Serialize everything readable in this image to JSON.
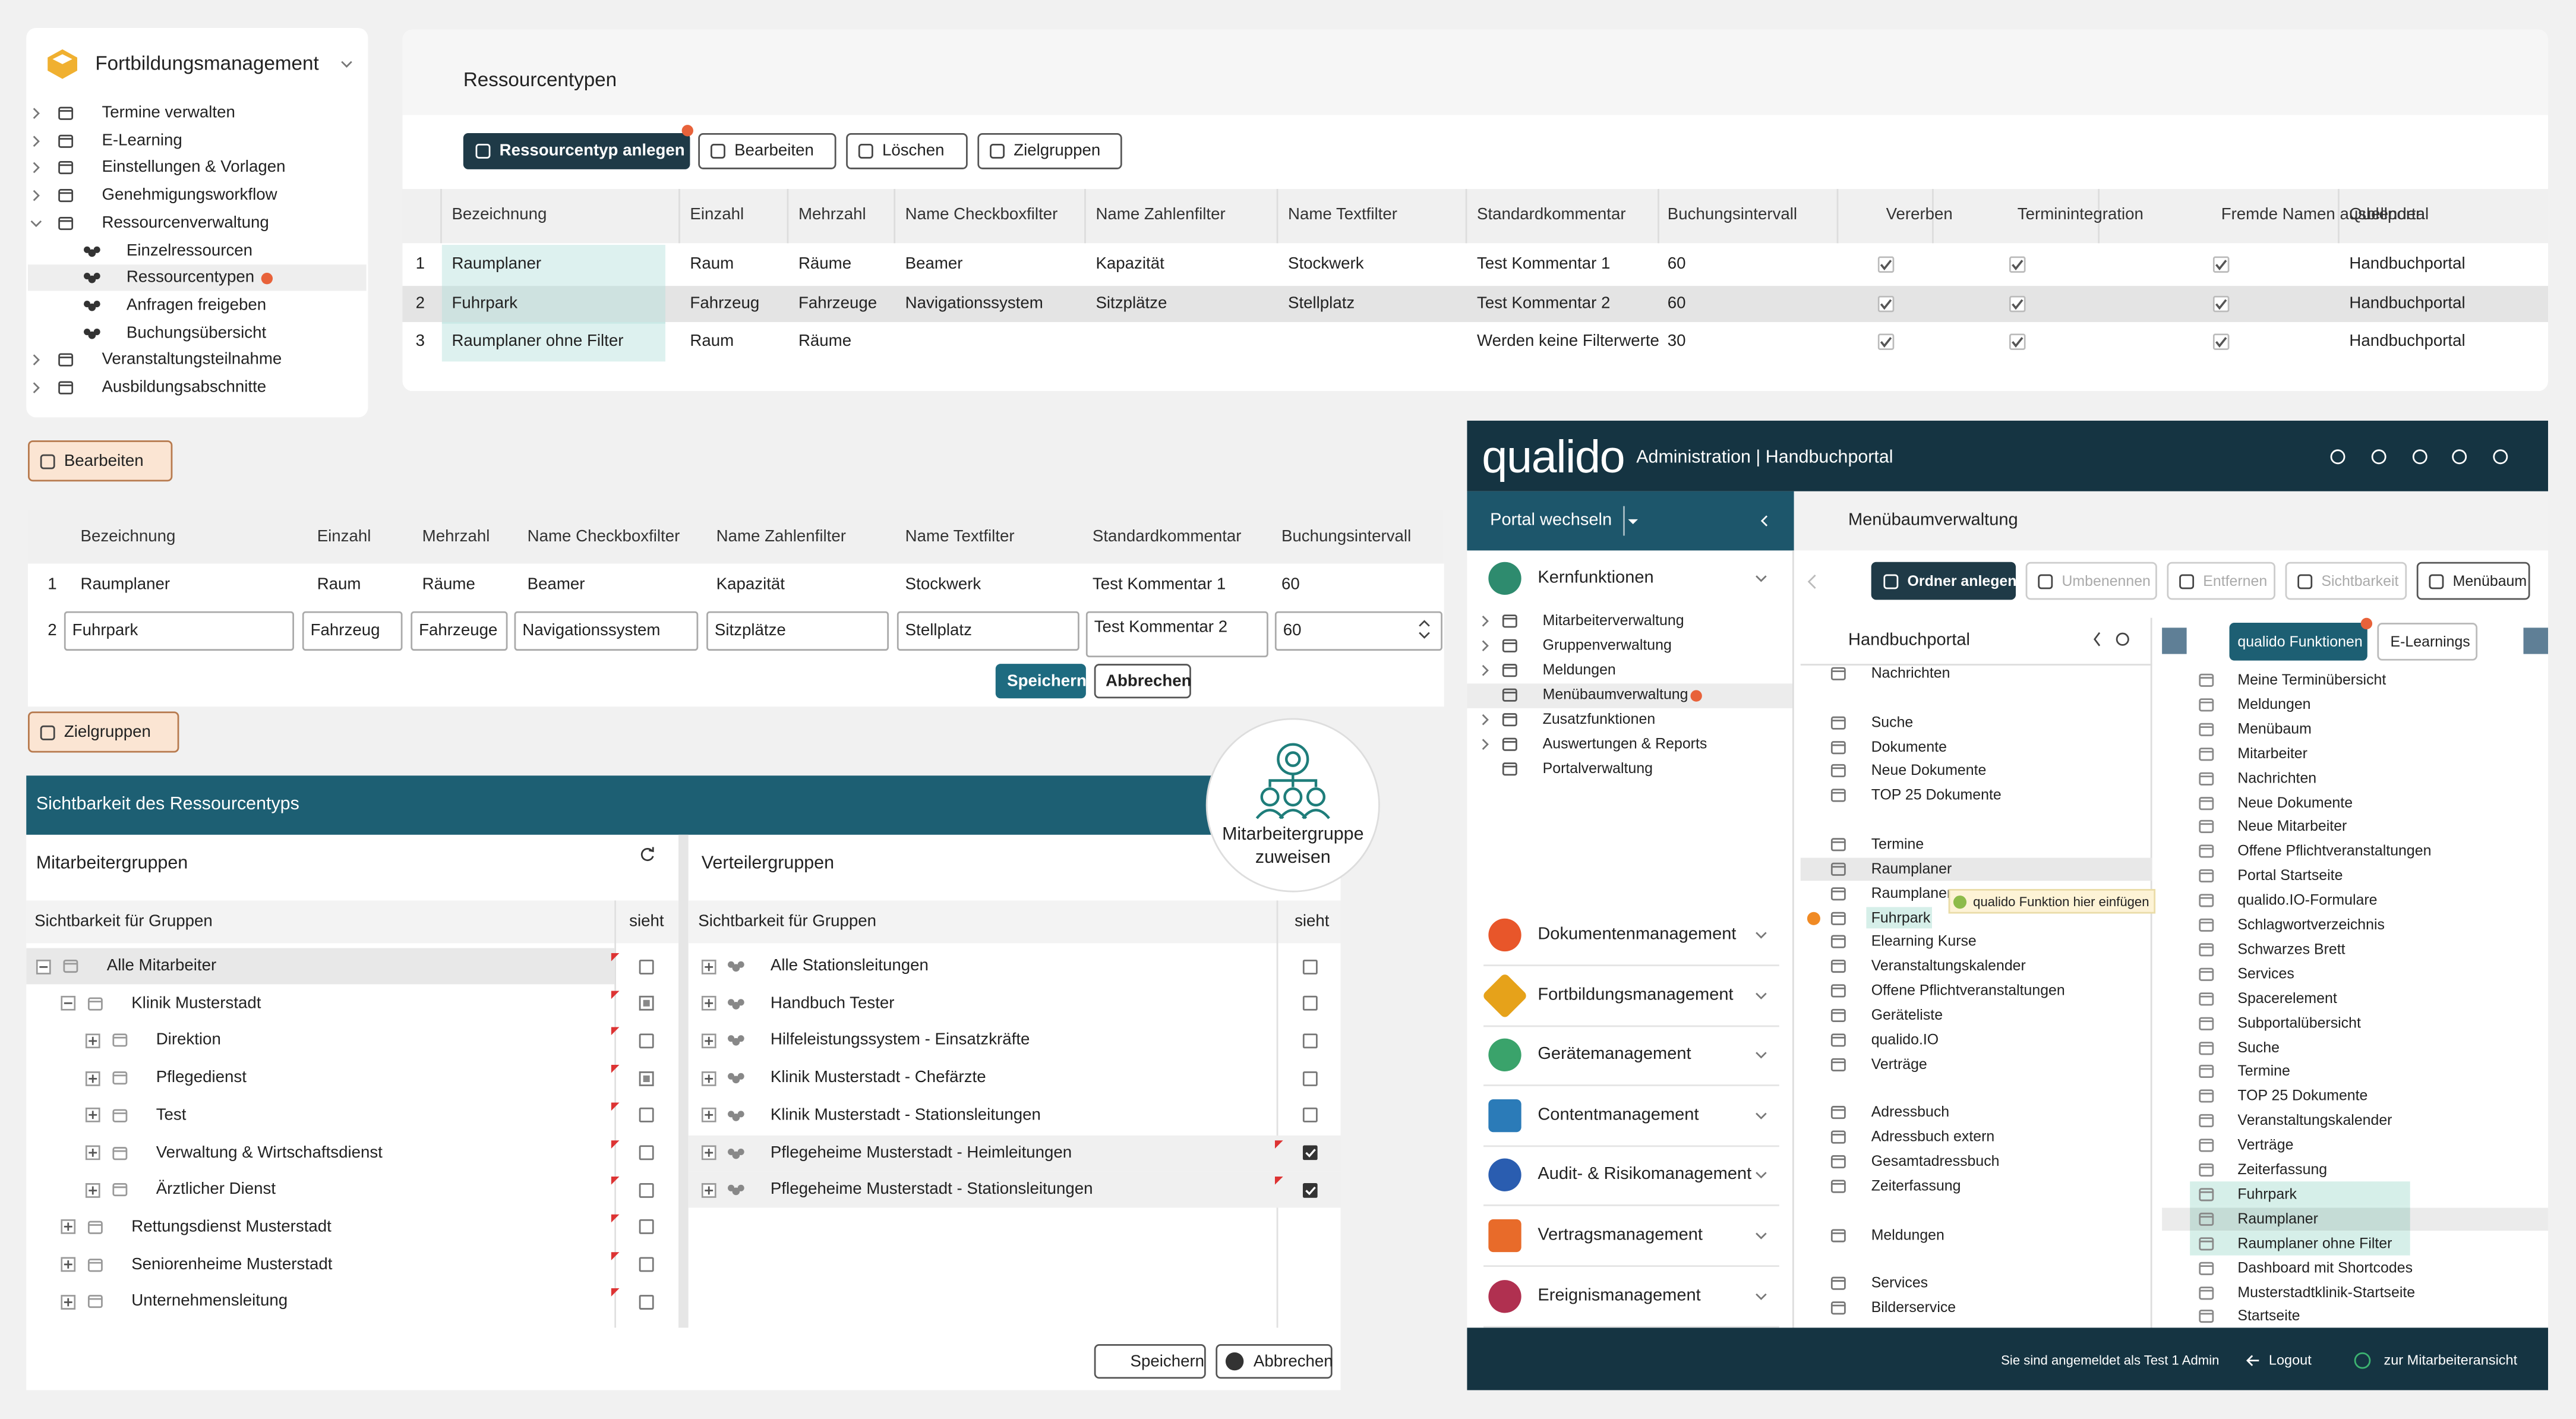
{
  "sidebar": {
    "title": "Fortbildungsmanagement",
    "items": [
      {
        "label": "Termine verwalten"
      },
      {
        "label": "E-Learning"
      },
      {
        "label": "Einstellungen & Vorlagen"
      },
      {
        "label": "Genehmigungsworkflow"
      },
      {
        "label": "Ressourcenverwaltung",
        "children": [
          "Einzelressourcen",
          "Ressourcentypen",
          "Anfragen freigeben",
          "Buchungsübersicht"
        ]
      },
      {
        "label": "Veranstaltungsteilnahme"
      },
      {
        "label": "Ausbildungsabschnitte"
      }
    ]
  },
  "resource_types": {
    "title": "Ressourcentypen",
    "buttons": [
      "Ressourcentyp anlegen",
      "Bearbeiten",
      "Löschen",
      "Zielgruppen"
    ],
    "table": {
      "columns": [
        "Bezeichnung",
        "Einzahl",
        "Mehrzahl",
        "Name Checkboxfilter",
        "Name Zahlenfilter",
        "Name Textfilter",
        "Standardkommentar",
        "Buchungsintervall",
        "Vererben",
        "Terminintegration",
        "Fremde Namen ausblenden",
        "Quellportal"
      ],
      "rows": [
        [
          1,
          "Raumplaner",
          "Raum",
          "Räume",
          "Beamer",
          "Kapazität",
          "Stockwerk",
          "Test Kommentar 1",
          60,
          true,
          true,
          true,
          "Handbuchportal"
        ],
        [
          2,
          "Fuhrpark",
          "Fahrzeug",
          "Fahrzeuge",
          "Navigationssystem",
          "Sitzplätze",
          "Stellplatz",
          "Test Kommentar 2",
          60,
          true,
          true,
          true,
          "Handbuchportal"
        ],
        [
          3,
          "Raumplaner ohne Filter",
          "Raum",
          "Räume",
          null,
          null,
          null,
          "Werden keine Filterwerte",
          30,
          true,
          true,
          true,
          "Handbuchportal"
        ]
      ]
    }
  },
  "edit": {
    "button": "Bearbeiten",
    "table": {
      "columns": [
        "Bezeichnung",
        "Einzahl",
        "Mehrzahl",
        "Name Checkboxfilter",
        "Name Zahlenfilter",
        "Name Textfilter",
        "Standardkommentar",
        "Buchungsintervall"
      ],
      "rows": [
        [
          1,
          "Raumplaner",
          "Raum",
          "Räume",
          "Beamer",
          "Kapazität",
          "Stockwerk",
          "Test Kommentar 1",
          60
        ],
        [
          2,
          "Fuhrpark",
          "Fahrzeug",
          "Fahrzeuge",
          "Navigationssystem",
          "Sitzplätze",
          "Stellplatz",
          "Test Kommentar 2",
          60
        ]
      ]
    },
    "save": "Speichern",
    "cancel": "Abbrechen"
  },
  "target_groups": {
    "button": "Zielgruppen",
    "panel_title": "Sichtbarkeit des Ressourcentyps",
    "badge": "Mitarbeitergruppe zuweisen",
    "left": {
      "title": "Mitarbeitergruppen",
      "column": "Sichtbarkeit für Gruppen",
      "column_sees": "sieht",
      "tree": [
        {
          "label": "Alle Mitarbeiter",
          "checked": false,
          "children": [
            {
              "label": "Klinik Musterstadt",
              "checked": true,
              "children": [
                {
                  "label": "Direktion",
                  "checked": false
                },
                {
                  "label": "Pflegedienst",
                  "checked": true
                },
                {
                  "label": "Test",
                  "checked": false
                },
                {
                  "label": "Verwaltung & Wirtschaftsdienst",
                  "checked": false
                },
                {
                  "label": "Ärztlicher Dienst",
                  "checked": false
                }
              ]
            },
            {
              "label": "Rettungsdienst Musterstadt",
              "checked": false
            },
            {
              "label": "Seniorenheime Musterstadt",
              "checked": false
            },
            {
              "label": "Unternehmensleitung",
              "checked": false
            }
          ]
        }
      ]
    },
    "right": {
      "title": "Verteilergruppen",
      "column": "Sichtbarkeit für Gruppen",
      "column_sees": "sieht",
      "rows": [
        {
          "label": "Alle Stationsleitungen",
          "checked": false
        },
        {
          "label": "Handbuch Tester",
          "checked": false
        },
        {
          "label": "Hilfeleistungssystem - Einsatzkräfte",
          "checked": false
        },
        {
          "label": "Klinik Musterstadt - Chefärzte",
          "checked": false
        },
        {
          "label": "Klinik Musterstadt - Stationsleitungen",
          "checked": false
        },
        {
          "label": "Pflegeheime Musterstadt - Heimleitungen",
          "checked": true
        },
        {
          "label": "Pflegeheime Musterstadt - Stationsleitungen",
          "checked": true
        }
      ]
    },
    "save": "Speichern",
    "cancel": "Abbrechen"
  },
  "qualido": {
    "logo": "qualido",
    "header": "Administration | Handbuchportal",
    "portal_switch": "Portal wechseln",
    "page_title": "Menübaumverwaltung",
    "core": {
      "title": "Kernfunktionen",
      "items": [
        "Mitarbeiterverwaltung",
        "Gruppenverwaltung",
        "Meldungen",
        "Menübaumverwaltung",
        "Zusatzfunktionen",
        "Auswertungen & Reports",
        "Portalverwaltung"
      ]
    },
    "modules": [
      "Dokumentenmanagement",
      "Fortbildungsmanagement",
      "Gerätemanagement",
      "Contentmanagement",
      "Audit- & Risikomanagement",
      "Vertragsmanagement",
      "Ereignismanagement"
    ],
    "toolbar": [
      "Ordner anlegen",
      "Umbenennen",
      "Entfernen",
      "Sichtbarkeit",
      "Menübaum"
    ],
    "tree_title": "Handbuchportal",
    "tree": [
      "Nachrichten",
      null,
      "Suche",
      "Dokumente",
      "Neue Dokumente",
      "TOP 25 Dokumente",
      null,
      "Termine",
      "Raumplaner",
      "Raumplaner",
      "Fuhrpark",
      "Elearning Kurse",
      "Veranstaltungskalender",
      "Offene Pflichtveranstaltungen",
      "Geräteliste",
      "qualido.IO",
      "Verträge",
      null,
      "Adressbuch",
      "Adressbuch extern",
      "Gesamtadressbuch",
      "Zeiterfassung",
      null,
      "Meldungen",
      null,
      "Services",
      "Bilderservice"
    ],
    "tooltip": "qualido Funktion hier einfügen",
    "tabs": [
      "qualido Funktionen",
      "E-Learnings"
    ],
    "functions": [
      "Meine Terminübersicht",
      "Meldungen",
      "Menübaum",
      "Mitarbeiter",
      "Nachrichten",
      "Neue Dokumente",
      "Neue Mitarbeiter",
      "Offene Pflichtveranstaltungen",
      "Portal Startseite",
      "qualido.IO-Formulare",
      "Schlagwortverzeichnis",
      "Schwarzes Brett",
      "Services",
      "Spacerelement",
      "Subportalübersicht",
      "Suche",
      "Termine",
      "TOP 25 Dokumente",
      "Veranstaltungskalender",
      "Verträge",
      "Zeiterfassung",
      "Fuhrpark",
      "Raumplaner",
      "Raumplaner ohne Filter",
      "Dashboard mit Shortcodes",
      "Musterstadtklinik-Startseite",
      "Startseite"
    ],
    "footer": {
      "user": "Sie sind angemeldet als Test 1 Admin",
      "logout": "Logout",
      "switch_view": "zur Mitarbeiteransicht"
    }
  }
}
